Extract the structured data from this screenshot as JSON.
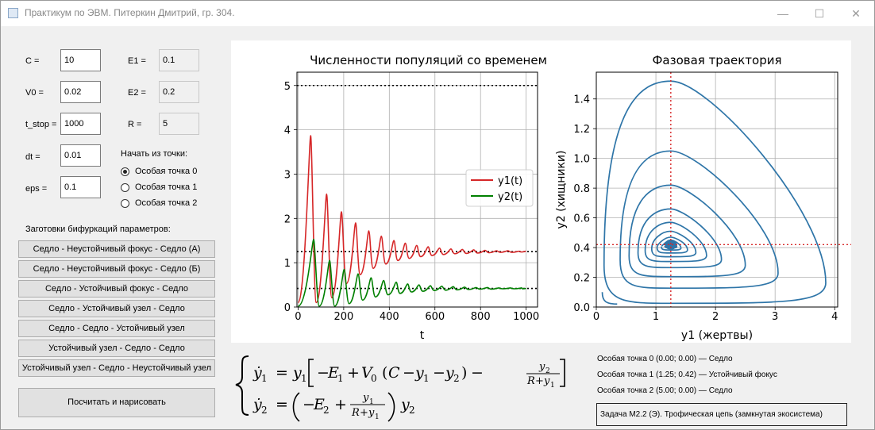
{
  "window": {
    "title": "Практикум по ЭВМ. Питеркин Дмитрий, гр. 304.",
    "minimize_glyph": "—",
    "maximize_glyph": "☐",
    "close_glyph": "✕"
  },
  "params": {
    "C": {
      "label": "C =",
      "value": "10"
    },
    "V0": {
      "label": "V0 =",
      "value": "0.02"
    },
    "t_stop": {
      "label": "t_stop =",
      "value": "1000"
    },
    "dt": {
      "label": "dt =",
      "value": "0.01"
    },
    "eps": {
      "label": "eps =",
      "value": "0.1"
    },
    "E1": {
      "label": "E1 =",
      "value": "0.1"
    },
    "E2": {
      "label": "E2 =",
      "value": "0.2"
    },
    "R": {
      "label": "R =",
      "value": "5"
    }
  },
  "start_point": {
    "label": "Начать из точки:",
    "options": [
      "Особая точка 0",
      "Особая точка 1",
      "Особая точка 2"
    ],
    "selected_index": 0
  },
  "presets": {
    "label": "Заготовки бифуркаций параметров:",
    "buttons": [
      "Седло - Неустойчивый фокус - Седло (А)",
      "Седло - Неустойчивый фокус - Седло (Б)",
      "Седло - Устойчивый фокус - Седло",
      "Седло - Устойчивый узел - Седло",
      "Седло - Седло - Устойчивый узел",
      "Устойчивый узел - Седло - Седло",
      "Устойчивый узел - Седло - Неустойчивый узел"
    ]
  },
  "compute_button": "Посчитать и нарисовать",
  "chart_data": [
    {
      "type": "line",
      "title": "Численности популяций со временем",
      "xlabel": "t",
      "ylabel": "",
      "xlim": [
        -5,
        1050
      ],
      "ylim": [
        0,
        5.3
      ],
      "xticks": [
        0,
        200,
        400,
        600,
        800,
        1000
      ],
      "yticks": [
        0,
        1,
        2,
        3,
        4,
        5
      ],
      "grid": true,
      "legend": "center-right",
      "hlines": [
        5.0,
        1.25,
        0.42
      ],
      "series": [
        {
          "name": "y1(t)",
          "color": "#d62728",
          "equilibrium": 1.25,
          "peaks": [
            [
              55,
              3.87
            ],
            [
              125,
              2.55
            ],
            [
              190,
              2.15
            ],
            [
              252,
              1.9
            ],
            [
              310,
              1.72
            ],
            [
              365,
              1.6
            ],
            [
              420,
              1.5
            ],
            [
              470,
              1.44
            ],
            [
              520,
              1.39
            ],
            [
              570,
              1.36
            ],
            [
              620,
              1.33
            ],
            [
              670,
              1.31
            ],
            [
              720,
              1.3
            ],
            [
              770,
              1.29
            ],
            [
              820,
              1.28
            ],
            [
              870,
              1.27
            ],
            [
              920,
              1.27
            ],
            [
              970,
              1.26
            ],
            [
              1000,
              1.26
            ]
          ]
        },
        {
          "name": "y2(t)",
          "color": "#008000",
          "equilibrium": 0.42,
          "peaks": [
            [
              68,
              1.53
            ],
            [
              138,
              1.05
            ],
            [
              202,
              0.85
            ],
            [
              263,
              0.75
            ],
            [
              320,
              0.66
            ],
            [
              375,
              0.6
            ],
            [
              430,
              0.56
            ],
            [
              480,
              0.52
            ],
            [
              530,
              0.5
            ],
            [
              580,
              0.48
            ],
            [
              630,
              0.47
            ],
            [
              680,
              0.46
            ],
            [
              730,
              0.45
            ],
            [
              780,
              0.44
            ],
            [
              830,
              0.44
            ],
            [
              880,
              0.43
            ],
            [
              930,
              0.43
            ],
            [
              980,
              0.43
            ],
            [
              1000,
              0.42
            ]
          ]
        }
      ]
    },
    {
      "type": "line",
      "title": "Фазовая траектория",
      "xlabel": "y1 (жертвы)",
      "ylabel": "y2 (хищники)",
      "xlim": [
        0,
        4.05
      ],
      "ylim": [
        0,
        1.58
      ],
      "xticks": [
        0,
        1,
        2,
        3,
        4
      ],
      "yticks": [
        0.0,
        0.2,
        0.4,
        0.6,
        0.8,
        1.0,
        1.2,
        1.4
      ],
      "grid": true,
      "color": "#2e75a8",
      "center": [
        1.25,
        0.42
      ],
      "vline": 1.25,
      "hline": 0.42,
      "loops": [
        {
          "x_min": 0.13,
          "x_max": 3.85,
          "y_max": 1.52
        },
        {
          "x_min": 0.4,
          "x_max": 3.05,
          "y_max": 1.05
        },
        {
          "x_min": 0.55,
          "x_max": 2.5,
          "y_max": 0.82
        },
        {
          "x_min": 0.7,
          "x_max": 2.1,
          "y_max": 0.66
        },
        {
          "x_min": 0.82,
          "x_max": 1.85,
          "y_max": 0.57
        },
        {
          "x_min": 0.93,
          "x_max": 1.67,
          "y_max": 0.51
        },
        {
          "x_min": 1.02,
          "x_max": 1.53,
          "y_max": 0.47
        },
        {
          "x_min": 1.09,
          "x_max": 1.42,
          "y_max": 0.45
        },
        {
          "x_min": 1.15,
          "x_max": 1.35,
          "y_max": 0.435
        }
      ]
    }
  ],
  "formula": {
    "eq1": {
      "lhs": "ẏ",
      "sub": "1",
      "e": "E",
      "v": "V",
      "c": "C",
      "y": "y",
      "r": "R",
      "n1": "1",
      "n2": "2"
    },
    "eq2": {
      "lhs": "ẏ",
      "sub": "2",
      "e": "E",
      "y": "y",
      "r": "R",
      "n1": "1",
      "n2": "2"
    }
  },
  "singular_points": [
    "Особая точка 0 (0.00; 0.00) — Седло",
    "Особая точка 1 (1.25; 0.42) — Устойчивый фокус",
    "Особая точка 2 (5.00; 0.00) — Седло"
  ],
  "task": "Задача М2.2 (Э). Трофическая цепь (замкнутая экосистема)"
}
